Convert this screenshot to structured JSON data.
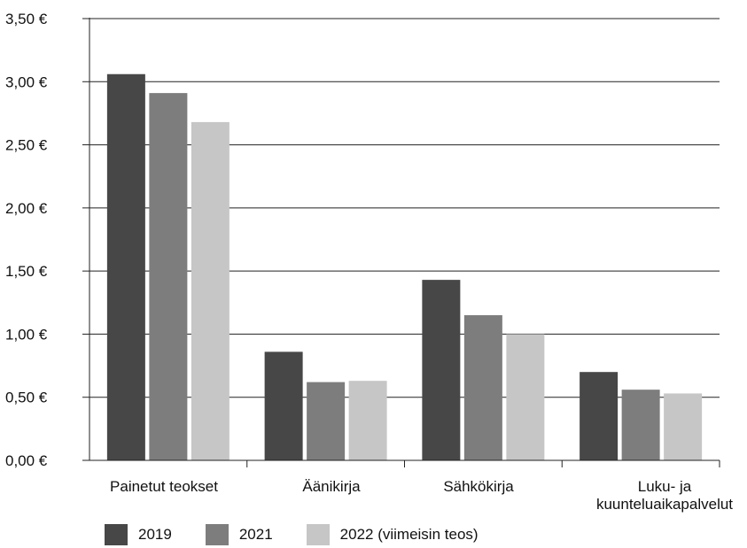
{
  "chart_data": {
    "type": "bar",
    "categories": [
      [
        "Painetut teokset"
      ],
      [
        "Äänikirja"
      ],
      [
        "Sähkökirja"
      ],
      [
        "Luku- ja",
        "kuunteluaikapalvelut"
      ]
    ],
    "series": [
      {
        "name": "2019",
        "color": "#474747",
        "values": [
          3.06,
          0.86,
          1.43,
          0.7
        ]
      },
      {
        "name": "2021",
        "color": "#7d7d7d",
        "values": [
          2.91,
          0.62,
          1.15,
          0.56
        ]
      },
      {
        "name": "2022 (viimeisin teos)",
        "color": "#c6c6c6",
        "values": [
          2.68,
          0.63,
          1.0,
          0.53
        ]
      }
    ],
    "yticks": [
      "0,00 €",
      "0,50 €",
      "1,00 €",
      "1,50 €",
      "2,00 €",
      "2,50 €",
      "3,00 €",
      "3,50 €"
    ],
    "ylim": [
      0,
      3.5
    ],
    "ystep": 0.5,
    "grid": true,
    "legend_position": "bottom-left"
  }
}
